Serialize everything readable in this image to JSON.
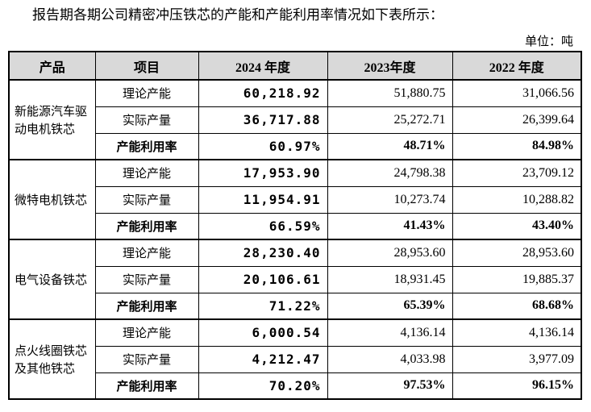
{
  "header": {
    "title": "报告期各期公司精密冲压铁芯的产能和产能利用率情况如下表所示：",
    "unit": "单位：吨"
  },
  "table": {
    "columns": [
      "产品",
      "项目",
      "2024 年度",
      "2023年度",
      "2022 年度"
    ],
    "groups": [
      {
        "product": "新能源汽车驱动电机铁芯",
        "rows": [
          [
            "理论产能",
            "60,218.92",
            "51,880.75",
            "31,066.56"
          ],
          [
            "实际产量",
            "36,717.88",
            "25,272.71",
            "26,399.64"
          ],
          [
            "产能利用率",
            "60.97%",
            "48.71%",
            "84.98%"
          ]
        ]
      },
      {
        "product": "微特电机铁芯",
        "rows": [
          [
            "理论产能",
            "17,953.90",
            "24,798.38",
            "23,709.12"
          ],
          [
            "实际产量",
            "11,954.91",
            "10,273.74",
            "10,288.82"
          ],
          [
            "产能利用率",
            "66.59%",
            "41.43%",
            "43.40%"
          ]
        ]
      },
      {
        "product": "电气设备铁芯",
        "rows": [
          [
            "理论产能",
            "28,230.40",
            "28,953.60",
            "28,953.60"
          ],
          [
            "实际产量",
            "20,106.61",
            "18,931.45",
            "19,885.37"
          ],
          [
            "产能利用率",
            "71.22%",
            "65.39%",
            "68.68%"
          ]
        ]
      },
      {
        "product": "点火线圈铁芯及其他铁芯",
        "rows": [
          [
            "理论产能",
            "6,000.54",
            "4,136.14",
            "4,136.14"
          ],
          [
            "实际产量",
            "4,212.47",
            "4,033.98",
            "3,977.09"
          ],
          [
            "产能利用率",
            "70.20%",
            "97.53%",
            "96.15%"
          ]
        ]
      }
    ]
  }
}
